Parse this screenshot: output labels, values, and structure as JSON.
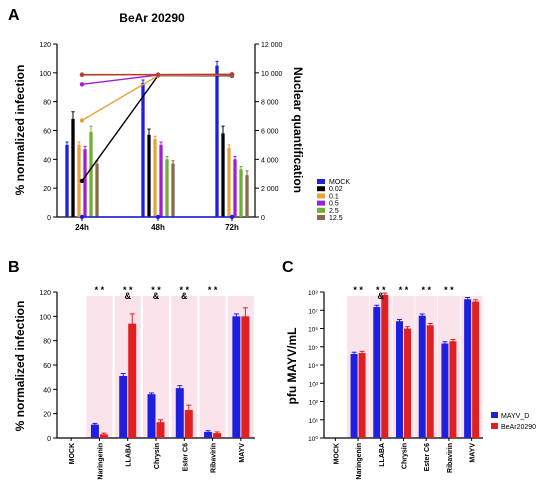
{
  "figure": {
    "panel_labels": [
      "A",
      "B",
      "C"
    ]
  },
  "chart_data": [
    {
      "panel": "A",
      "type": "bar",
      "title": "BeAr 20290",
      "ylabel": "% normalized infection",
      "y2label": "Nuclear quantification",
      "ylim": [
        0,
        120
      ],
      "y2lim": [
        0,
        12000
      ],
      "yticks": [
        0,
        20,
        40,
        60,
        80,
        100,
        120
      ],
      "y2ticks": [
        "0",
        "2 000",
        "4 000",
        "6 000",
        "8 000",
        "10 000",
        "12 000"
      ],
      "categories": [
        "24h",
        "48h",
        "72h"
      ],
      "legend_position": "right",
      "series": [
        {
          "name": "MOCK",
          "color": "#1f1fe0",
          "values": [
            50,
            93,
            105
          ],
          "errors": [
            2,
            2,
            3
          ]
        },
        {
          "name": "0.02",
          "color": "#000000",
          "values": [
            68,
            57,
            58
          ],
          "errors": [
            5,
            4,
            5
          ]
        },
        {
          "name": "0.1",
          "color": "#e8a33a",
          "values": [
            50,
            54,
            48
          ],
          "errors": [
            2,
            2,
            2
          ]
        },
        {
          "name": "0.5",
          "color": "#a020d0",
          "values": [
            47,
            50,
            40
          ],
          "errors": [
            2,
            2,
            2
          ]
        },
        {
          "name": "2.5",
          "color": "#6fb034",
          "values": [
            59,
            40,
            33
          ],
          "errors": [
            4,
            2,
            2
          ]
        },
        {
          "name": "12.5",
          "color": "#8a6a48",
          "values": [
            37,
            37,
            29
          ],
          "errors": [
            2,
            2,
            3
          ]
        }
      ],
      "lines": [
        {
          "name": "MOCK",
          "color": "#1f1fe0",
          "x": [
            0,
            1,
            2
          ],
          "y": [
            0,
            0,
            0
          ]
        },
        {
          "name": "0.02",
          "color": "#000000",
          "x": [
            0,
            1,
            2
          ],
          "y": [
            2500,
            9800,
            9800
          ]
        },
        {
          "name": "0.1",
          "color": "#e8a33a",
          "x": [
            0,
            1,
            2
          ],
          "y": [
            6700,
            9800,
            9850
          ]
        },
        {
          "name": "0.5",
          "color": "#a020d0",
          "x": [
            0,
            1,
            2
          ],
          "y": [
            9200,
            9850,
            9880
          ]
        },
        {
          "name": "2.5",
          "color": "#6fb034",
          "x": [
            0,
            1,
            2
          ],
          "y": [
            9850,
            9870,
            9900
          ]
        },
        {
          "name": "12.5",
          "color": "#c0392b",
          "x": [
            0,
            1,
            2
          ],
          "y": [
            9880,
            9880,
            9900
          ]
        }
      ]
    },
    {
      "panel": "B",
      "type": "bar",
      "ylabel": "% normalized infection",
      "ylim": [
        0,
        120
      ],
      "yticks": [
        0,
        20,
        40,
        60,
        80,
        100,
        120
      ],
      "categories": [
        "MOCK",
        "Naringenin",
        "LLABA",
        "Chrysin",
        "Ester C6",
        "Ribavirin",
        "MAYV"
      ],
      "series": [
        {
          "name": "MAYV_D",
          "color": "#1f1fe0",
          "values": [
            0,
            11,
            51,
            36,
            41,
            5,
            100
          ],
          "errors": [
            0,
            1,
            2,
            1,
            2,
            1,
            2
          ]
        },
        {
          "name": "BeAr20290",
          "color": "#e02020",
          "values": [
            0,
            3,
            94,
            13,
            23,
            4,
            100
          ],
          "errors": [
            0,
            1,
            8,
            2,
            4,
            1,
            7
          ]
        }
      ],
      "annotations": [
        {
          "category": "Naringenin",
          "text": "* *"
        },
        {
          "category": "LLABA",
          "text": "* *"
        },
        {
          "category": "Chrysin",
          "text": "* *"
        },
        {
          "category": "Ester C6",
          "text": "* *"
        },
        {
          "category": "Ribavirin",
          "text": "* *"
        },
        {
          "category": "LLABA",
          "text": "&"
        },
        {
          "category": "Chrysin",
          "text": "&"
        },
        {
          "category": "Ester C6",
          "text": "&"
        }
      ]
    },
    {
      "panel": "C",
      "type": "bar",
      "ylabel": "pfu MAYV/mL",
      "yscale": "log",
      "ylim": [
        1,
        100000000
      ],
      "yticks": [
        "10⁰",
        "10¹",
        "10²",
        "10³",
        "10⁴",
        "10⁵",
        "10⁶",
        "10⁷",
        "10⁸"
      ],
      "categories": [
        "MOCK",
        "Naringenin",
        "LLABA",
        "Chrysin",
        "Ester C6",
        "Ribavirin",
        "MAYV"
      ],
      "legend_position": "bottom-right",
      "series": [
        {
          "name": "MAYV_D",
          "color": "#1f1fe0",
          "values": [
            1,
            40000,
            15000000,
            2500000,
            5000000,
            150000,
            40000000
          ]
        },
        {
          "name": "BeAr20290",
          "color": "#e02020",
          "values": [
            1,
            45000,
            70000000,
            1000000,
            1500000,
            200000,
            30000000
          ]
        }
      ],
      "annotations": [
        {
          "category": "Naringenin",
          "text": "* *"
        },
        {
          "category": "LLABA",
          "text": "* *"
        },
        {
          "category": "Chrysin",
          "text": "* *"
        },
        {
          "category": "Ester C6",
          "text": "* *"
        },
        {
          "category": "Ribavirin",
          "text": "* *"
        },
        {
          "category": "LLABA",
          "text": "&"
        }
      ]
    }
  ]
}
